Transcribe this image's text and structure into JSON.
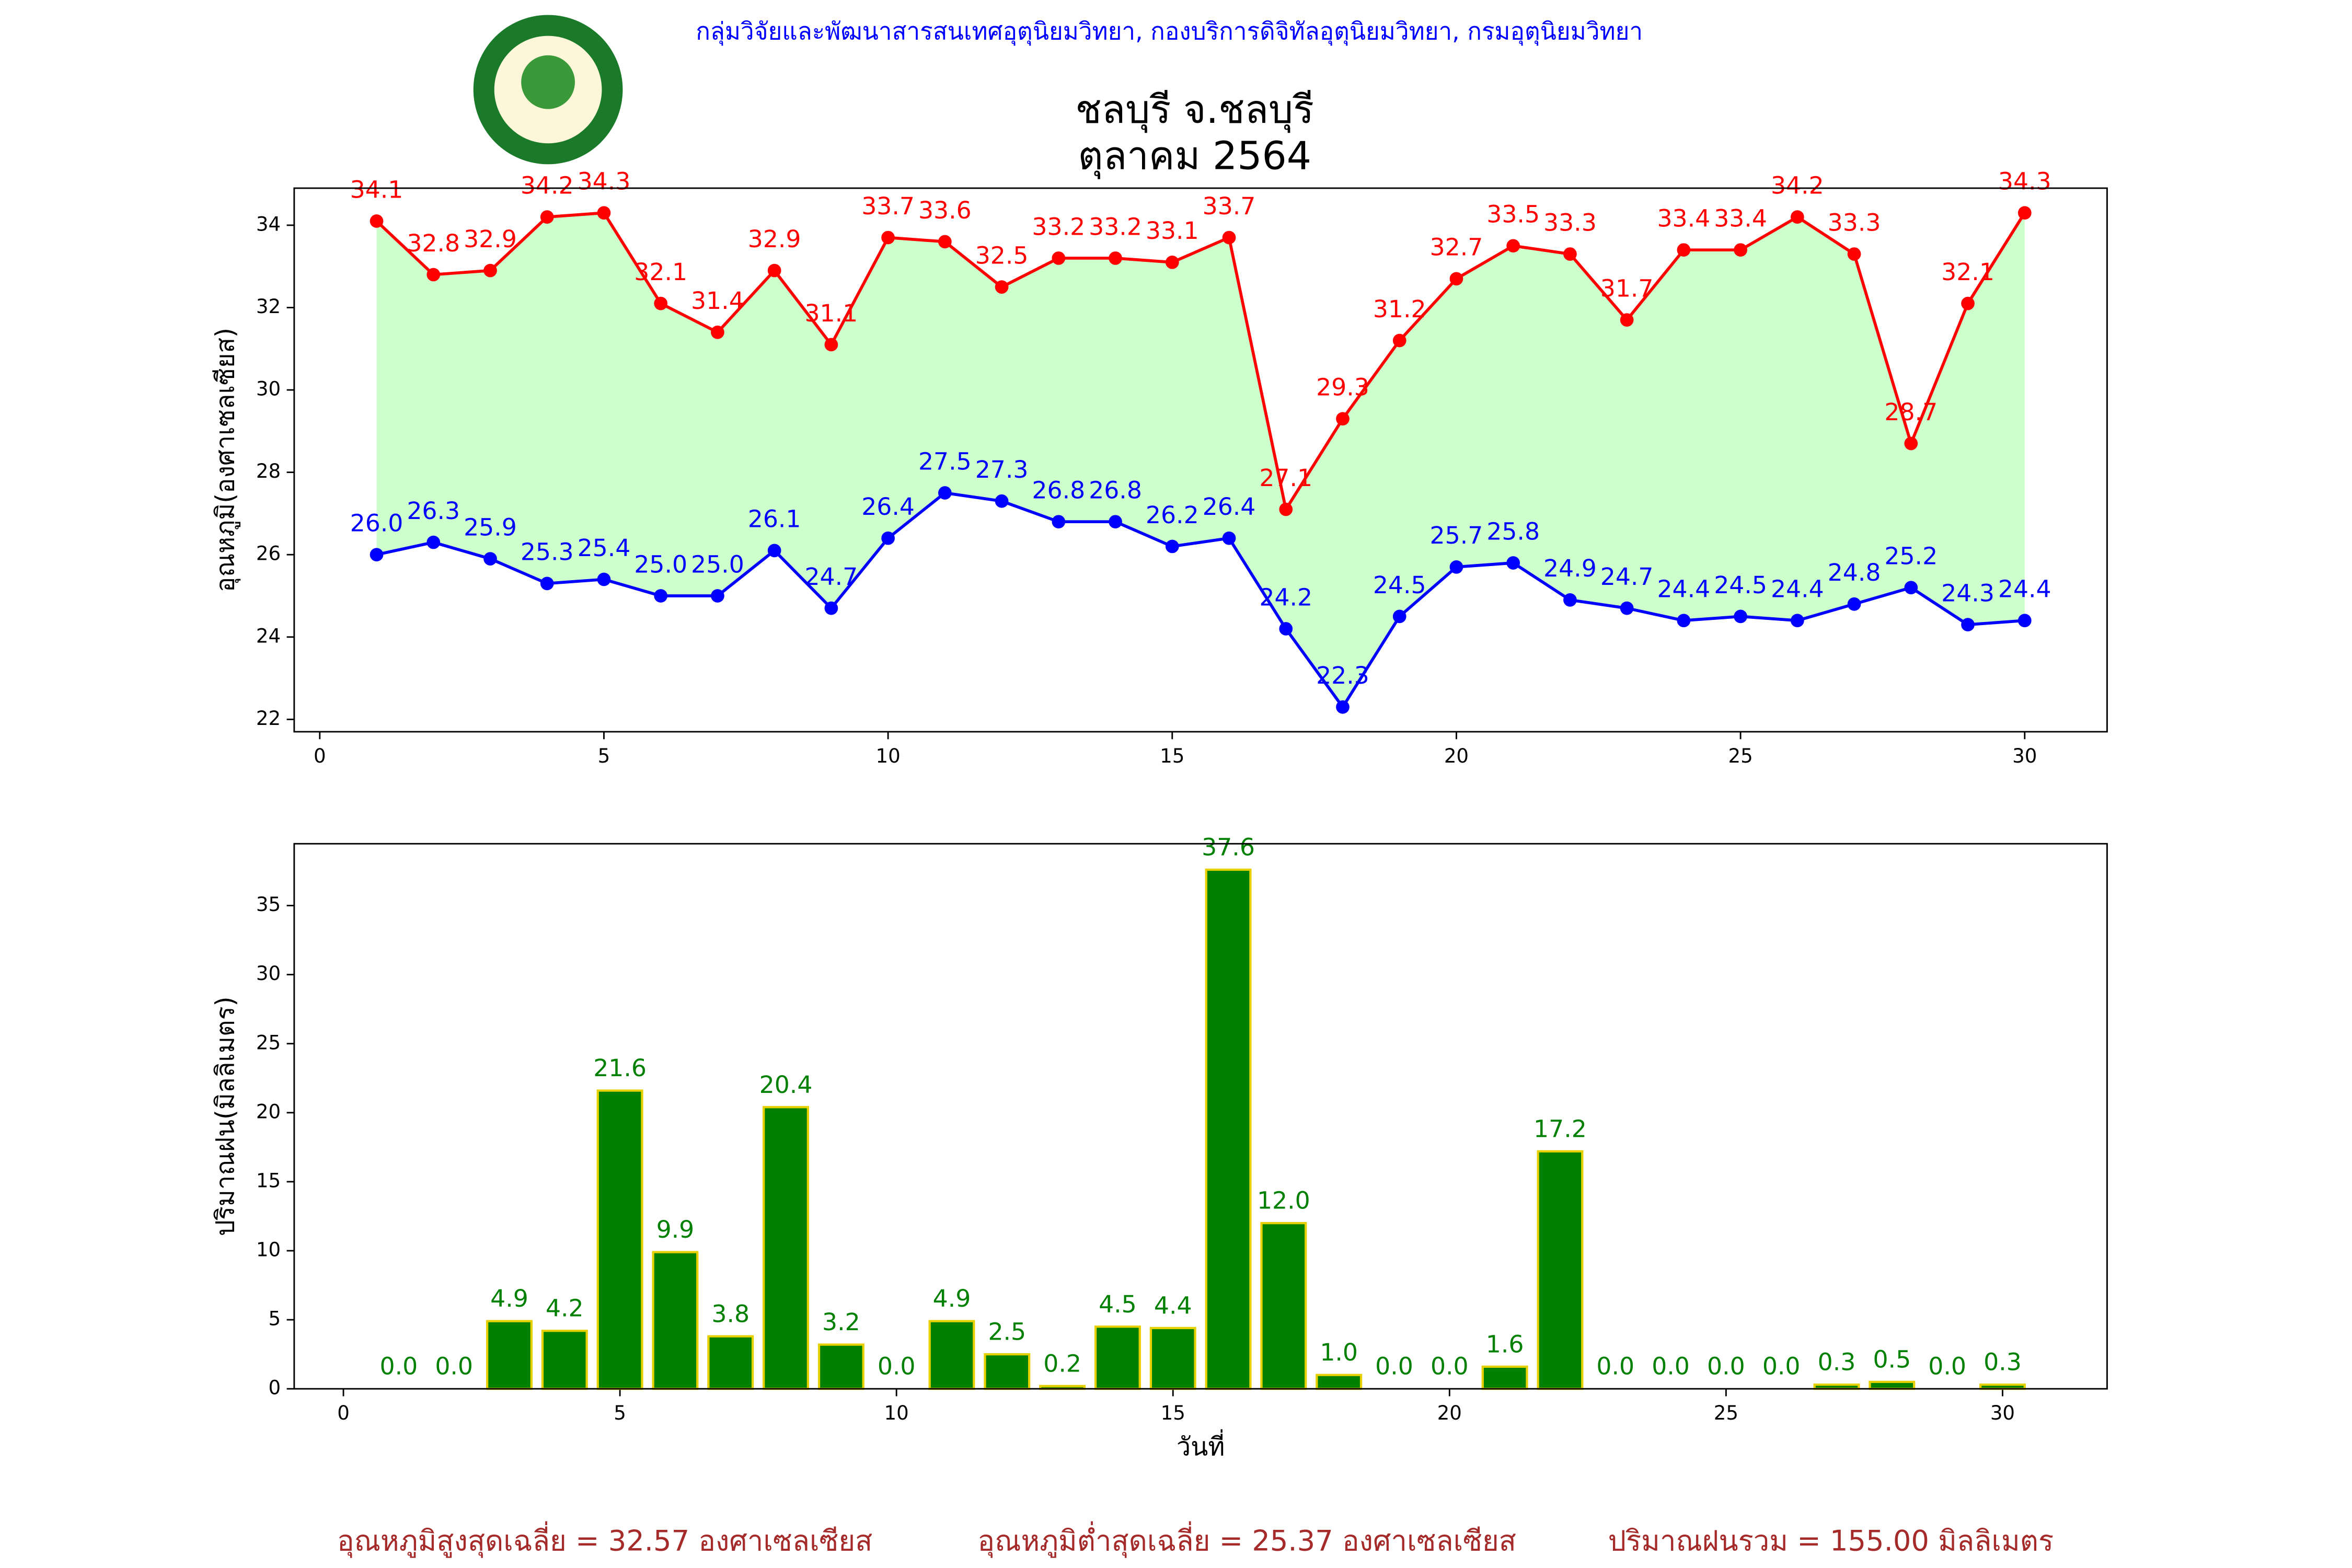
{
  "header": "กลุ่มวิจัยและพัฒนาสารสนเทศอุตุนิยมวิทยา, กองบริการดิจิทัลอุตุนิยมวิทยา, กรมอุตุนิยมวิทยา",
  "chart_data": [
    {
      "type": "line",
      "title": "ชลบุรี จ.ชลบุรี",
      "subtitle": "ตุลาคม 2564",
      "ylabel": "อุณหภูมิ(องศาเซลเซียส)",
      "x": [
        1,
        2,
        3,
        4,
        5,
        6,
        7,
        8,
        9,
        10,
        11,
        12,
        13,
        14,
        15,
        16,
        17,
        18,
        19,
        20,
        21,
        22,
        23,
        24,
        25,
        26,
        27,
        28,
        29,
        30
      ],
      "series": [
        {
          "color": "#ff0000",
          "values": [
            34.1,
            32.8,
            32.9,
            34.2,
            34.3,
            32.1,
            31.4,
            32.9,
            31.1,
            33.7,
            33.6,
            32.5,
            33.2,
            33.2,
            33.1,
            33.7,
            27.1,
            29.3,
            31.2,
            32.7,
            33.5,
            33.3,
            31.7,
            33.4,
            33.4,
            34.2,
            33.3,
            28.7,
            32.1,
            34.3
          ]
        },
        {
          "color": "#0000ff",
          "values": [
            26,
            26.3,
            25.9,
            25.3,
            25.4,
            25,
            25,
            26.1,
            24.7,
            26.4,
            27.5,
            27.3,
            26.8,
            26.8,
            26.2,
            26.4,
            24.2,
            22.3,
            24.5,
            25.7,
            25.8,
            24.9,
            24.7,
            24.4,
            24.5,
            24.4,
            24.8,
            25.2,
            24.3,
            24.4
          ],
          "value_labels": [
            "26.0",
            "26.3",
            "25.9",
            "25.3",
            "25.4",
            "25.0",
            "25.0",
            "26.1",
            "24.7",
            "26.4",
            "27.5",
            "27.3",
            "26.8",
            "26.8",
            "26.2",
            "26.4",
            "24.2",
            "22.3",
            "24.5",
            "25.7",
            "25.8",
            "24.9",
            "24.7",
            "24.4",
            "24.5",
            "24.4",
            "24.8",
            "25.2",
            "24.3",
            "24.4"
          ]
        }
      ],
      "fill_color": "#ccffcc",
      "xlim": [
        -0.45,
        31.45
      ],
      "xticks": [
        0,
        5,
        10,
        15,
        20,
        25,
        30
      ],
      "ylim": [
        21.7,
        34.9
      ],
      "yticks": [
        22,
        24,
        26,
        28,
        30,
        32,
        34
      ]
    },
    {
      "type": "bar",
      "ylabel": "ปริมาณฝน(มิลลิเมตร)",
      "xlabel": "วันที่",
      "x": [
        1,
        2,
        3,
        4,
        5,
        6,
        7,
        8,
        9,
        10,
        11,
        12,
        13,
        14,
        15,
        16,
        17,
        18,
        19,
        20,
        21,
        22,
        23,
        24,
        25,
        26,
        27,
        28,
        29,
        30
      ],
      "values": [
        0,
        0,
        4.9,
        4.2,
        21.6,
        9.9,
        3.8,
        20.4,
        3.2,
        0,
        4.9,
        2.5,
        0.2,
        4.5,
        4.4,
        37.6,
        12,
        1,
        0,
        0,
        1.6,
        17.2,
        0,
        0,
        0,
        0,
        0.3,
        0.5,
        0,
        0.3
      ],
      "value_labels": [
        "0.0",
        "0.0",
        "4.9",
        "4.2",
        "21.6",
        "9.9",
        "3.8",
        "20.4",
        "3.2",
        "0.0",
        "4.9",
        "2.5",
        "0.2",
        "4.5",
        "4.4",
        "37.6",
        "12.0",
        "1.0",
        "0.0",
        "0.0",
        "1.6",
        "17.2",
        "0.0",
        "0.0",
        "0.0",
        "0.0",
        "0.3",
        "0.5",
        "0.0",
        "0.3"
      ],
      "color": "#008000",
      "edgecolor": "#e6d000",
      "label_color": "#008000",
      "xlim": [
        -0.89,
        31.89
      ],
      "xticks": [
        0,
        5,
        10,
        15,
        20,
        25,
        30
      ],
      "ylim": [
        0,
        39.48
      ],
      "yticks": [
        0,
        5,
        10,
        15,
        20,
        25,
        30,
        35
      ]
    }
  ],
  "footer": [
    "อุณหภูมิสูงสุดเฉลี่ย = 32.57 องศาเซลเซียส",
    "อุณหภูมิต่ำสุดเฉลี่ย = 25.37 องศาเซลเซียส",
    "ปริมาณฝนรวม = 155.00 มิลลิเมตร"
  ]
}
